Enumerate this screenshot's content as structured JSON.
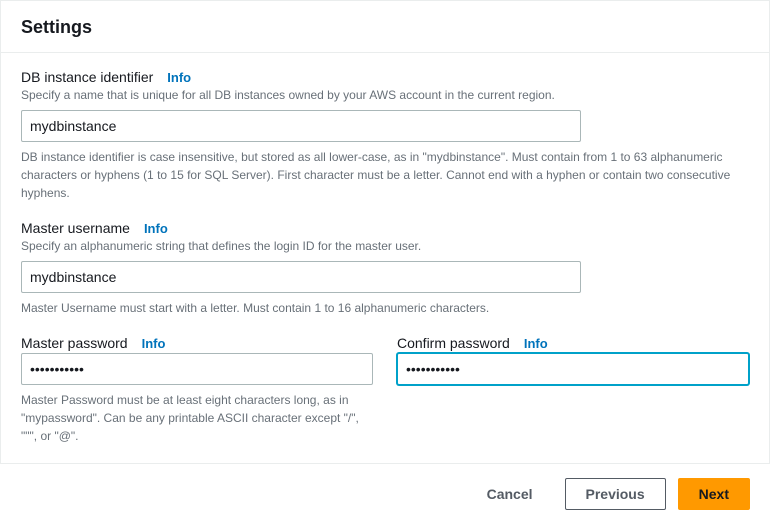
{
  "colors": {
    "accent": "#ff9900",
    "link": "#0073bb",
    "focus": "#00a1c9",
    "border": "#aab7b8",
    "muted": "#687078",
    "text": "#16191f"
  },
  "panel": {
    "title": "Settings"
  },
  "fields": {
    "identifier": {
      "label": "DB instance identifier",
      "info": "Info",
      "desc": "Specify a name that is unique for all DB instances owned by your AWS account in the current region.",
      "value": "mydbinstance",
      "help": "DB instance identifier is case insensitive, but stored as all lower-case, as in \"mydbinstance\". Must contain from 1 to 63 alphanumeric characters or hyphens (1 to 15 for SQL Server). First character must be a letter. Cannot end with a hyphen or contain two consecutive hyphens."
    },
    "username": {
      "label": "Master username",
      "info": "Info",
      "desc": "Specify an alphanumeric string that defines the login ID for the master user.",
      "value": "mydbinstance",
      "help": "Master Username must start with a letter. Must contain 1 to 16 alphanumeric characters."
    },
    "password": {
      "label": "Master password",
      "info": "Info",
      "value": "•••••••••••",
      "help": "Master Password must be at least eight characters long, as in \"mypassword\". Can be any printable ASCII character except \"/\", \"\"\", or \"@\"."
    },
    "confirm": {
      "label": "Confirm password",
      "info": "Info",
      "value": "•••••••••••"
    }
  },
  "footer": {
    "cancel": "Cancel",
    "previous": "Previous",
    "next": "Next"
  }
}
